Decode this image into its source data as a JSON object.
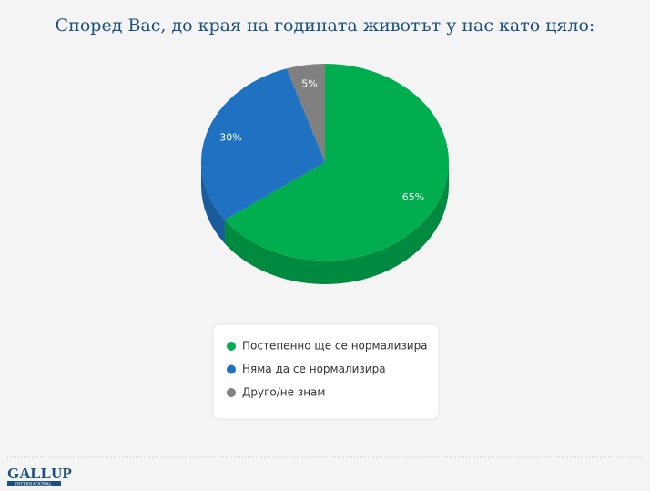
{
  "chart_data": {
    "type": "pie3d",
    "title": "Според Вас, до края на годината животът у нас като цяло:",
    "categories": [
      "Постепенно ще се нормализира",
      "Няма да се нормализира",
      "Друго/не знам"
    ],
    "values": [
      65,
      30,
      5
    ],
    "value_labels": [
      "65%",
      "30%",
      "5%"
    ],
    "colors": [
      "#00ad4f",
      "#1f72c2",
      "#808080"
    ],
    "legend": "bottom"
  },
  "footer": {
    "logo": "GALLUP",
    "logo_sub": "INTERNATIONAL"
  }
}
